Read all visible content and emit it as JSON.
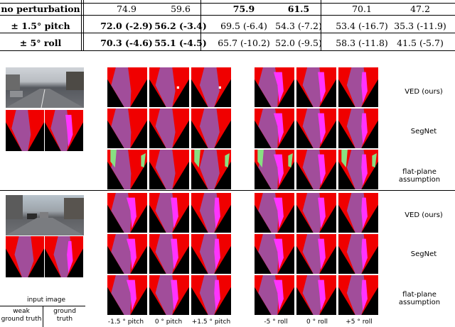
{
  "table": {
    "rows": [
      {
        "label": "no perturbation",
        "cells": [
          "74.9",
          "59.6",
          "75.9",
          "61.5",
          "70.1",
          "47.2"
        ],
        "bold": [
          false,
          false,
          true,
          true,
          false,
          false
        ]
      },
      {
        "label": "± 1.5° pitch",
        "cells": [
          "72.0 (-2.9)",
          "56.2 (-3.4)",
          "69.5 (-6.4)",
          "54.3 (-7.2)",
          "53.4 (-16.7)",
          "35.3 (-11.9)"
        ],
        "bold": [
          true,
          true,
          false,
          false,
          false,
          false
        ]
      },
      {
        "label": "± 5° roll",
        "cells": [
          "70.3 (-4.6)",
          "55.1 (-4.5)",
          "65.7 (-10.2)",
          "52.0 (-9.5)",
          "58.3 (-11.8)",
          "41.5 (-5.7)"
        ],
        "bold": [
          true,
          true,
          false,
          false,
          false,
          false
        ]
      }
    ]
  },
  "method_labels": [
    "VED (ours)",
    "SegNet",
    "flat-plane assumption"
  ],
  "input_legend": {
    "title": "input image",
    "left": "weak\nground truth",
    "right": "ground\ntruth"
  },
  "pitch_captions": [
    "-1.5 ° pitch",
    "0 ° pitch",
    "+1.5 ° pitch"
  ],
  "roll_captions": [
    "-5 ° roll",
    "0 ° roll",
    "+5 ° roll"
  ],
  "colors": {
    "red": "#f00000",
    "purple": "#a14d9a",
    "magenta": "#ff33ff",
    "green": "#88e082",
    "black": "#000000"
  }
}
